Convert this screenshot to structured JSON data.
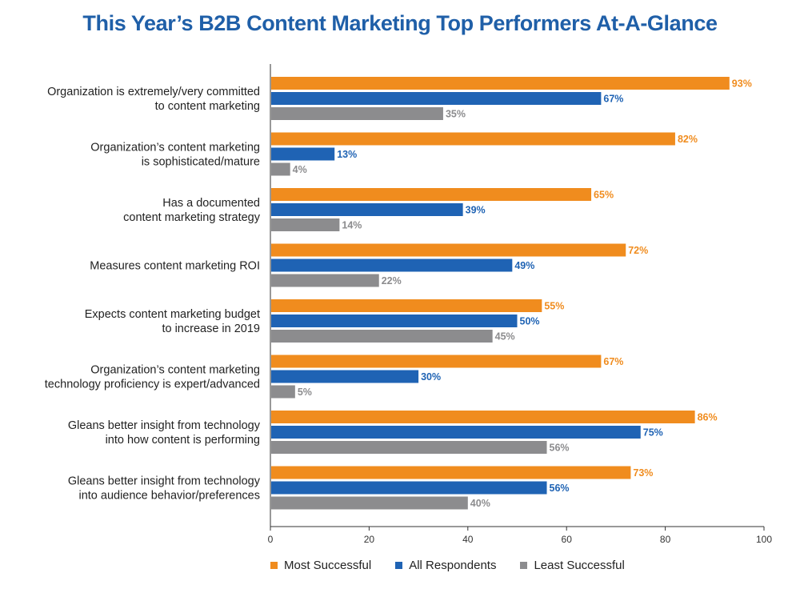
{
  "title": "This Year’s B2B Content Marketing Top Performers At-A-Glance",
  "colors": {
    "most": "#f08c1e",
    "all": "#1f63b4",
    "least": "#8c8c8e"
  },
  "chart_data": {
    "type": "bar",
    "orientation": "horizontal",
    "title": "This Year’s B2B Content Marketing Top Performers At-A-Glance",
    "xlim": [
      0,
      100
    ],
    "xticks": [
      0,
      20,
      40,
      60,
      80,
      100
    ],
    "grid": false,
    "legend_position": "bottom",
    "categories": [
      [
        "Organization is extremely/very committed",
        "to content marketing"
      ],
      [
        "Organization’s content marketing",
        "is sophisticated/mature"
      ],
      [
        "Has a documented",
        "content marketing strategy"
      ],
      [
        "Measures content marketing ROI"
      ],
      [
        "Expects content marketing budget",
        "to increase in 2019"
      ],
      [
        "Organization’s content marketing",
        "technology proficiency is expert/advanced"
      ],
      [
        "Gleans better insight from technology",
        "into how content is performing"
      ],
      [
        "Gleans better insight from technology",
        "into audience behavior/preferences"
      ]
    ],
    "series": [
      {
        "key": "most",
        "name": "Most Successful",
        "values": [
          93,
          82,
          65,
          72,
          55,
          67,
          86,
          73
        ]
      },
      {
        "key": "all",
        "name": "All Respondents",
        "values": [
          67,
          13,
          39,
          49,
          50,
          30,
          75,
          56
        ]
      },
      {
        "key": "least",
        "name": "Least Successful",
        "values": [
          35,
          4,
          14,
          22,
          45,
          5,
          56,
          40
        ]
      }
    ],
    "value_suffix": "%"
  }
}
